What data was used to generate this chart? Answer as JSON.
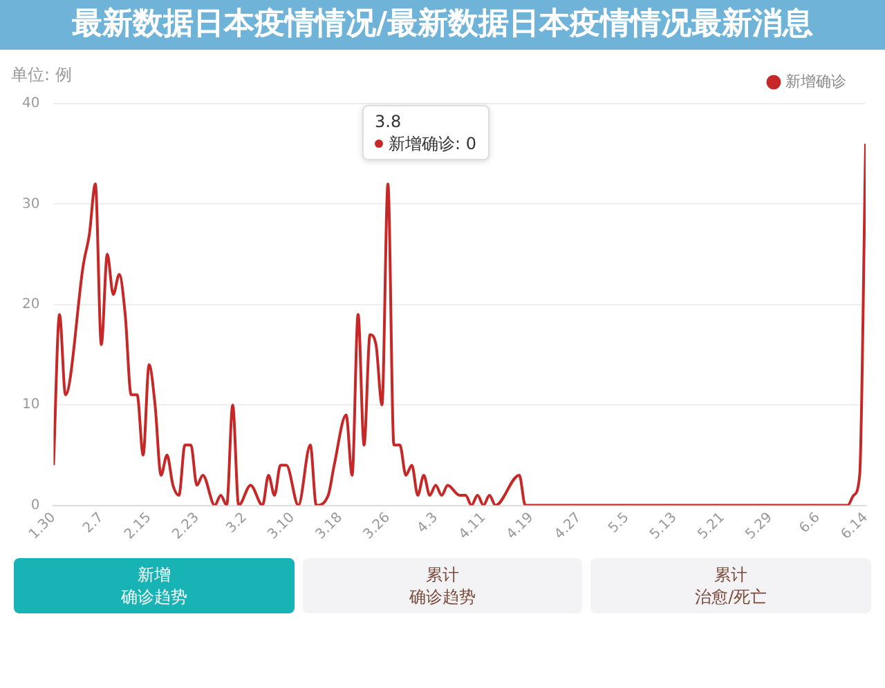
{
  "chart_data": {
    "type": "line",
    "title": "最新数据日本疫情情况/最新数据日本疫情情况最新消息",
    "ylabel": "单位: 例",
    "x": [
      "--01-30",
      "--01-31",
      "--02-01",
      "--02-04",
      "--02-05",
      "--02-06",
      "--02-07",
      "--02-08",
      "--02-09",
      "--02-10",
      "--02-11",
      "--02-12",
      "--02-13",
      "--02-14",
      "--02-15",
      "--02-16",
      "--02-17",
      "--02-18",
      "--02-19",
      "--02-20",
      "--02-21",
      "--02-22",
      "--02-23",
      "--02-24",
      "--02-26",
      "--02-27",
      "--02-28",
      "--02-29",
      "--03-01",
      "--03-03",
      "--03-05",
      "--03-06",
      "--03-07",
      "--03-08",
      "--03-09",
      "--03-11",
      "--03-13",
      "--03-14",
      "--03-16",
      "--03-17",
      "--03-19",
      "--03-20",
      "--03-21",
      "--03-22",
      "--03-23",
      "--03-24",
      "--03-25",
      "--03-26",
      "--03-27",
      "--03-28",
      "--03-29",
      "--03-30",
      "--03-31",
      "--04-01",
      "--04-02",
      "--04-03",
      "--04-04",
      "--04-05",
      "--04-07",
      "--04-08",
      "--04-09",
      "--04-10",
      "--04-11",
      "--04-12",
      "--04-13",
      "--04-17",
      "--04-18",
      "--06-11",
      "--06-12",
      "--06-13",
      "--06-14"
    ],
    "series": [
      {
        "name": "新增确诊",
        "color": "#c62828",
        "values": [
          4,
          19,
          11,
          24,
          27,
          32,
          16,
          25,
          21,
          23,
          19,
          11,
          11,
          5,
          14,
          10,
          3,
          5,
          2,
          1,
          6,
          6,
          2,
          3,
          0,
          1,
          0,
          10,
          0,
          2,
          0,
          3,
          1,
          4,
          4,
          0,
          6,
          0,
          1,
          4,
          9,
          3,
          19,
          6,
          17,
          16,
          10,
          32,
          6,
          6,
          3,
          4,
          1,
          3,
          1,
          2,
          1,
          2,
          1,
          1,
          0,
          1,
          0,
          1,
          0,
          3,
          0,
          0,
          1,
          3,
          36
        ]
      }
    ],
    "xlim": [
      "--01-30",
      "--06-14"
    ],
    "xticks": [
      {
        "value": "--01-30",
        "label": "1.30"
      },
      {
        "value": "--02-07",
        "label": "2.7"
      },
      {
        "value": "--02-15",
        "label": "2.15"
      },
      {
        "value": "--02-23",
        "label": "2.23"
      },
      {
        "value": "--03-02",
        "label": "3.2"
      },
      {
        "value": "--03-10",
        "label": "3.10"
      },
      {
        "value": "--03-18",
        "label": "3.18"
      },
      {
        "value": "--03-26",
        "label": "3.26"
      },
      {
        "value": "--04-03",
        "label": "4.3"
      },
      {
        "value": "--04-11",
        "label": "4.11"
      },
      {
        "value": "--04-19",
        "label": "4.19"
      },
      {
        "value": "--04-27",
        "label": "4.27"
      },
      {
        "value": "--05-05",
        "label": "5.5"
      },
      {
        "value": "--05-13",
        "label": "5.13"
      },
      {
        "value": "--05-21",
        "label": "5.21"
      },
      {
        "value": "--05-29",
        "label": "5.29"
      },
      {
        "value": "--06-06",
        "label": "6.6"
      },
      {
        "value": "--06-14",
        "label": "6.14"
      }
    ],
    "ylim": [
      0,
      40
    ],
    "yticks": [
      0,
      10,
      20,
      30,
      40
    ],
    "grid": "y",
    "legend": "top right",
    "marker": "none",
    "line_style": "solid",
    "annotations": [
      "3.8\n新增确诊: 0",
      "新增",
      "确诊趋势",
      "累计",
      "确诊趋势",
      "累计",
      "治愈/死亡"
    ]
  }
}
